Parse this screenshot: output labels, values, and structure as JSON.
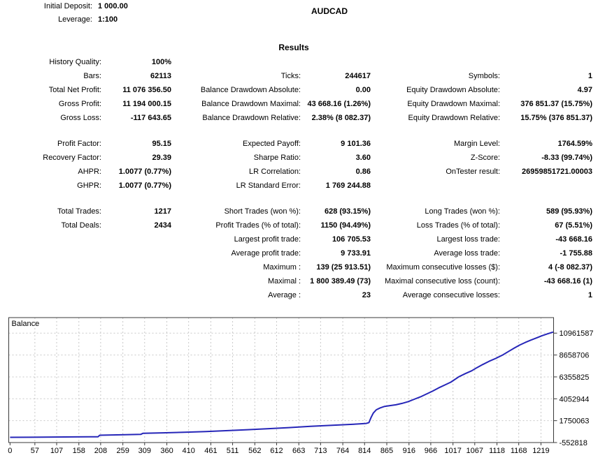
{
  "header": {
    "initial_deposit_label": "Initial Deposit:",
    "initial_deposit_value": "1 000.00",
    "leverage_label": "Leverage:",
    "leverage_value": "1:100",
    "symbol": "AUDCAD",
    "results_title": "Results"
  },
  "stats": {
    "blocks": [
      {
        "rows": [
          [
            [
              "History Quality:",
              "100%"
            ],
            null,
            null
          ],
          [
            [
              "Bars:",
              "62113"
            ],
            [
              "Ticks:",
              "244617"
            ],
            [
              "Symbols:",
              "1"
            ]
          ],
          [
            [
              "Total Net Profit:",
              "11 076 356.50"
            ],
            [
              "Balance Drawdown Absolute:",
              "0.00"
            ],
            [
              "Equity Drawdown Absolute:",
              "4.97"
            ]
          ],
          [
            [
              "Gross Profit:",
              "11 194 000.15"
            ],
            [
              "Balance Drawdown Maximal:",
              "43 668.16 (1.26%)"
            ],
            [
              "Equity Drawdown Maximal:",
              "376 851.37 (15.75%)"
            ]
          ],
          [
            [
              "Gross Loss:",
              "-117 643.65"
            ],
            [
              "Balance Drawdown Relative:",
              "2.38% (8 082.37)"
            ],
            [
              "Equity Drawdown Relative:",
              "15.75% (376 851.37)"
            ]
          ]
        ]
      },
      {
        "rows": [
          [
            [
              "Profit Factor:",
              "95.15"
            ],
            [
              "Expected Payoff:",
              "9 101.36"
            ],
            [
              "Margin Level:",
              "1764.59%"
            ]
          ],
          [
            [
              "Recovery Factor:",
              "29.39"
            ],
            [
              "Sharpe Ratio:",
              "3.60"
            ],
            [
              "Z-Score:",
              "-8.33 (99.74%)"
            ]
          ],
          [
            [
              "AHPR:",
              "1.0077 (0.77%)"
            ],
            [
              "LR Correlation:",
              "0.86"
            ],
            [
              "OnTester result:",
              "26959851721.00003"
            ]
          ],
          [
            [
              "GHPR:",
              "1.0077 (0.77%)"
            ],
            [
              "LR Standard Error:",
              "1 769 244.88"
            ],
            null
          ]
        ]
      },
      {
        "rows": [
          [
            [
              "Total Trades:",
              "1217"
            ],
            [
              "Short Trades (won %):",
              "628 (93.15%)"
            ],
            [
              "Long Trades (won %):",
              "589 (95.93%)"
            ]
          ],
          [
            [
              "Total Deals:",
              "2434"
            ],
            [
              "Profit Trades (% of total):",
              "1150 (94.49%)"
            ],
            [
              "Loss Trades (% of total):",
              "67 (5.51%)"
            ]
          ],
          [
            null,
            [
              "Largest profit trade:",
              "106 705.53"
            ],
            [
              "Largest loss trade:",
              "-43 668.16"
            ]
          ],
          [
            null,
            [
              "Average profit trade:",
              "9 733.91"
            ],
            [
              "Average loss trade:",
              "-1 755.88"
            ]
          ],
          [
            null,
            [
              "Maximum :",
              "139 (25 913.51)"
            ],
            [
              "Maximum consecutive losses ($):",
              "4 (-8 082.37)"
            ]
          ],
          [
            null,
            [
              "Maximal :",
              "1 800 389.49 (73)"
            ],
            [
              "Maximal consecutive loss (count):",
              "-43 668.16 (1)"
            ]
          ],
          [
            null,
            [
              "Average :",
              "23"
            ],
            [
              "Average consecutive losses:",
              "1"
            ]
          ]
        ]
      }
    ]
  },
  "chart_data": {
    "type": "line",
    "title": "Balance",
    "legend_position": "top-left",
    "grid": "dashed",
    "line_color": "#2626b8",
    "grid_color": "#c8c8c8",
    "axis_color": "#3a3a3a",
    "x_ticks": [
      0,
      57,
      107,
      158,
      208,
      259,
      309,
      360,
      410,
      461,
      511,
      562,
      612,
      663,
      713,
      764,
      814,
      865,
      916,
      966,
      1017,
      1067,
      1118,
      1168,
      1219
    ],
    "y_ticks": [
      -552818,
      1750063,
      4052944,
      6355825,
      8658706,
      10961587
    ],
    "x_range": [
      -3,
      1248
    ],
    "y_range": [
      -552818,
      12595000
    ],
    "series": [
      {
        "name": "Balance",
        "points": [
          [
            0,
            1000
          ],
          [
            50,
            9000
          ],
          [
            100,
            25000
          ],
          [
            150,
            45000
          ],
          [
            202,
            60000
          ],
          [
            206,
            215000
          ],
          [
            255,
            265000
          ],
          [
            300,
            310000
          ],
          [
            305,
            415000
          ],
          [
            350,
            470000
          ],
          [
            400,
            530000
          ],
          [
            450,
            610000
          ],
          [
            500,
            700000
          ],
          [
            545,
            800000
          ],
          [
            590,
            900000
          ],
          [
            640,
            1020000
          ],
          [
            690,
            1150000
          ],
          [
            740,
            1270000
          ],
          [
            790,
            1380000
          ],
          [
            818,
            1460000
          ],
          [
            824,
            1550000
          ],
          [
            829,
            2100000
          ],
          [
            834,
            2550000
          ],
          [
            841,
            2900000
          ],
          [
            850,
            3100000
          ],
          [
            860,
            3250000
          ],
          [
            872,
            3330000
          ],
          [
            886,
            3420000
          ],
          [
            900,
            3570000
          ],
          [
            914,
            3750000
          ],
          [
            928,
            4000000
          ],
          [
            942,
            4250000
          ],
          [
            956,
            4550000
          ],
          [
            970,
            4850000
          ],
          [
            984,
            5200000
          ],
          [
            998,
            5500000
          ],
          [
            1012,
            5800000
          ],
          [
            1030,
            6360000
          ],
          [
            1045,
            6700000
          ],
          [
            1060,
            7000000
          ],
          [
            1072,
            7330000
          ],
          [
            1085,
            7650000
          ],
          [
            1100,
            8000000
          ],
          [
            1115,
            8300000
          ],
          [
            1131,
            8660000
          ],
          [
            1145,
            9050000
          ],
          [
            1158,
            9400000
          ],
          [
            1170,
            9700000
          ],
          [
            1183,
            9980000
          ],
          [
            1196,
            10230000
          ],
          [
            1210,
            10480000
          ],
          [
            1222,
            10700000
          ],
          [
            1235,
            10900000
          ],
          [
            1247,
            11077356
          ]
        ]
      }
    ]
  }
}
